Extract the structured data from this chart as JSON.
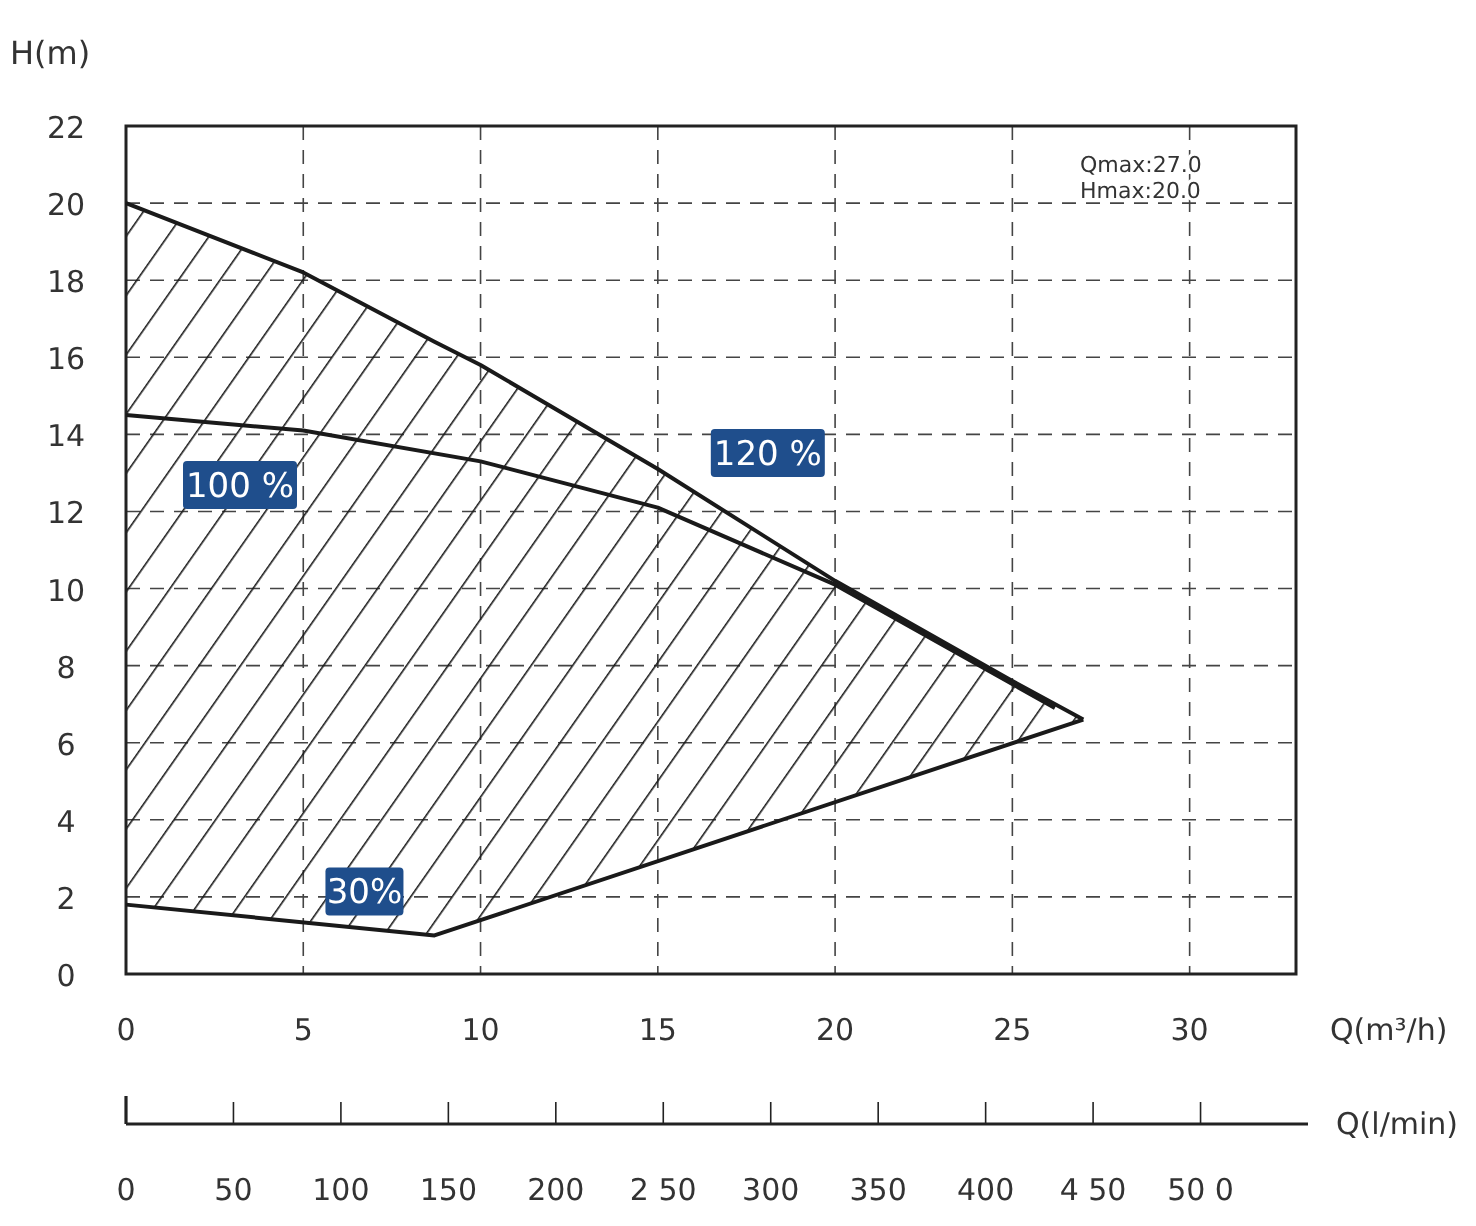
{
  "chart_data": {
    "type": "line",
    "xlabel": "Q(m³/h)",
    "ylabel": "H(m)",
    "x2label": "Q(l/min)",
    "xlim": [
      0,
      33
    ],
    "xticks": [
      0,
      5,
      10,
      15,
      20,
      25,
      30
    ],
    "ylim": [
      0,
      22
    ],
    "yticks": [
      0,
      2,
      4,
      6,
      8,
      10,
      12,
      14,
      16,
      18,
      20,
      22
    ],
    "x2lim": [
      0,
      550
    ],
    "x2ticks": [
      0,
      50,
      100,
      150,
      200,
      {
        "value": 250,
        "label": "2 50"
      },
      300,
      350,
      400,
      {
        "value": 450,
        "label": "4 50"
      },
      {
        "value": 500,
        "label": "50 0"
      }
    ],
    "grid": true,
    "line_style": "solid",
    "marker": "none",
    "annotations": [
      "Qmax:27.0",
      "Hmax:20.0"
    ],
    "series": [
      {
        "name": "120 %",
        "color": "#1a1a1a",
        "x": [
          0,
          5,
          8.7,
          10,
          15,
          20,
          25,
          27
        ],
        "values": [
          20,
          18.2,
          16.4,
          15.8,
          13.1,
          10.2,
          7.6,
          6.6
        ],
        "upper": [
          20,
          18.2,
          16.4,
          15.8,
          13.1,
          10.2,
          7.6,
          6.6
        ],
        "lower": [
          1.8,
          1.3,
          1.0,
          1.4,
          2.9,
          4.5,
          6.0,
          6.6
        ]
      },
      {
        "name": "100 %",
        "color": "#1a1a1a",
        "x": [
          0,
          5,
          10,
          15,
          20,
          26.2
        ],
        "values": [
          14.5,
          14.1,
          13.3,
          12.1,
          10.1,
          6.9
        ]
      },
      {
        "name": "30%",
        "color": "#1a1a1a",
        "x": [
          0,
          8.7,
          27
        ],
        "values": [
          1.8,
          1,
          6.6
        ]
      }
    ]
  }
}
